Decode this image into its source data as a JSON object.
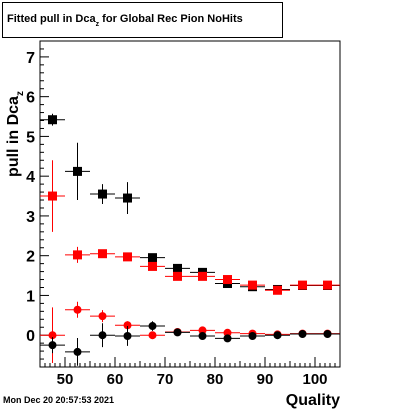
{
  "header": {
    "title_pre": "Fitted pull in Dca",
    "title_sub": "z",
    "title_post": " for Global Rec Pion NoHits"
  },
  "footer": {
    "timestamp": "Mon Dec 20 20:57:53 2021"
  },
  "chart_data": {
    "type": "scatter",
    "title": "Fitted pull in Dca_z  for Global Rec Pion NoHits",
    "xlabel": "Quality",
    "ylabel": "pull in Dca_z",
    "xlim": [
      45,
      105
    ],
    "ylim": [
      -0.8,
      7.4
    ],
    "x_ticks": [
      50,
      60,
      70,
      80,
      90,
      100
    ],
    "y_ticks": [
      0,
      1,
      2,
      3,
      4,
      5,
      6,
      7
    ],
    "grid": false,
    "series": [
      {
        "marker": "square",
        "color": "#000000",
        "points": [
          {
            "x": 47.5,
            "y": 5.42,
            "ex": 2.5,
            "ey": 0.15
          },
          {
            "x": 52.5,
            "y": 4.12,
            "ex": 2.5,
            "ey": 0.72
          },
          {
            "x": 57.5,
            "y": 3.55,
            "ex": 2.5,
            "ey": 0.25
          },
          {
            "x": 62.5,
            "y": 3.45,
            "ex": 2.5,
            "ey": 0.4
          },
          {
            "x": 67.5,
            "y": 1.95,
            "ex": 2.5,
            "ey": 0.1
          },
          {
            "x": 72.5,
            "y": 1.68,
            "ex": 2.5,
            "ey": 0.08
          },
          {
            "x": 77.5,
            "y": 1.58,
            "ex": 2.5,
            "ey": 0.06
          },
          {
            "x": 82.5,
            "y": 1.3,
            "ex": 2.5,
            "ey": 0.05
          },
          {
            "x": 87.5,
            "y": 1.22,
            "ex": 2.5,
            "ey": 0.05
          },
          {
            "x": 92.5,
            "y": 1.15,
            "ex": 2.5,
            "ey": 0.05
          },
          {
            "x": 97.5,
            "y": 1.25,
            "ex": 2.5,
            "ey": 0.05
          },
          {
            "x": 102.5,
            "y": 1.25,
            "ex": 2.5,
            "ey": 0.05
          }
        ]
      },
      {
        "marker": "square",
        "color": "#ff0000",
        "points": [
          {
            "x": 47.5,
            "y": 3.5,
            "ex": 2.5,
            "ey": 0.9
          },
          {
            "x": 52.5,
            "y": 2.02,
            "ex": 2.5,
            "ey": 0.2
          },
          {
            "x": 57.5,
            "y": 2.05,
            "ex": 2.5,
            "ey": 0.1
          },
          {
            "x": 62.5,
            "y": 1.97,
            "ex": 2.5,
            "ey": 0.08
          },
          {
            "x": 67.5,
            "y": 1.73,
            "ex": 2.5,
            "ey": 0.06
          },
          {
            "x": 72.5,
            "y": 1.48,
            "ex": 2.5,
            "ey": 0.05
          },
          {
            "x": 77.5,
            "y": 1.48,
            "ex": 2.5,
            "ey": 0.05
          },
          {
            "x": 82.5,
            "y": 1.4,
            "ex": 2.5,
            "ey": 0.05
          },
          {
            "x": 87.5,
            "y": 1.26,
            "ex": 2.5,
            "ey": 0.04
          },
          {
            "x": 92.5,
            "y": 1.13,
            "ex": 2.5,
            "ey": 0.04
          },
          {
            "x": 97.5,
            "y": 1.26,
            "ex": 2.5,
            "ey": 0.04
          },
          {
            "x": 102.5,
            "y": 1.26,
            "ex": 2.5,
            "ey": 0.04
          }
        ]
      },
      {
        "marker": "circle",
        "color": "#ff0000",
        "points": [
          {
            "x": 47.5,
            "y": 0.0,
            "ex": 2.5,
            "ey": 0.7
          },
          {
            "x": 52.5,
            "y": 0.64,
            "ex": 2.5,
            "ey": 0.2
          },
          {
            "x": 57.5,
            "y": 0.48,
            "ex": 2.5,
            "ey": 0.15
          },
          {
            "x": 62.5,
            "y": 0.25,
            "ex": 2.5,
            "ey": 0.1
          },
          {
            "x": 67.5,
            "y": 0.0,
            "ex": 2.5,
            "ey": 0.06
          },
          {
            "x": 72.5,
            "y": 0.08,
            "ex": 2.5,
            "ey": 0.05
          },
          {
            "x": 77.5,
            "y": 0.12,
            "ex": 2.5,
            "ey": 0.05
          },
          {
            "x": 82.5,
            "y": 0.06,
            "ex": 2.5,
            "ey": 0.04
          },
          {
            "x": 87.5,
            "y": 0.04,
            "ex": 2.5,
            "ey": 0.04
          },
          {
            "x": 92.5,
            "y": 0.02,
            "ex": 2.5,
            "ey": 0.03
          },
          {
            "x": 97.5,
            "y": 0.04,
            "ex": 2.5,
            "ey": 0.03
          },
          {
            "x": 102.5,
            "y": 0.04,
            "ex": 2.5,
            "ey": 0.03
          }
        ]
      },
      {
        "marker": "circle",
        "color": "#000000",
        "points": [
          {
            "x": 47.5,
            "y": -0.25,
            "ex": 2.5,
            "ey": 0.2
          },
          {
            "x": 52.5,
            "y": -0.42,
            "ex": 2.5,
            "ey": 0.35
          },
          {
            "x": 57.5,
            "y": 0.0,
            "ex": 2.5,
            "ey": 0.3
          },
          {
            "x": 62.5,
            "y": -0.02,
            "ex": 2.5,
            "ey": 0.25
          },
          {
            "x": 67.5,
            "y": 0.23,
            "ex": 2.5,
            "ey": 0.12
          },
          {
            "x": 72.5,
            "y": 0.07,
            "ex": 2.5,
            "ey": 0.08
          },
          {
            "x": 77.5,
            "y": -0.02,
            "ex": 2.5,
            "ey": 0.06
          },
          {
            "x": 82.5,
            "y": -0.08,
            "ex": 2.5,
            "ey": 0.05
          },
          {
            "x": 87.5,
            "y": -0.02,
            "ex": 2.5,
            "ey": 0.04
          },
          {
            "x": 92.5,
            "y": 0.0,
            "ex": 2.5,
            "ey": 0.04
          },
          {
            "x": 97.5,
            "y": 0.03,
            "ex": 2.5,
            "ey": 0.03
          },
          {
            "x": 102.5,
            "y": 0.03,
            "ex": 2.5,
            "ey": 0.03
          }
        ]
      }
    ]
  }
}
